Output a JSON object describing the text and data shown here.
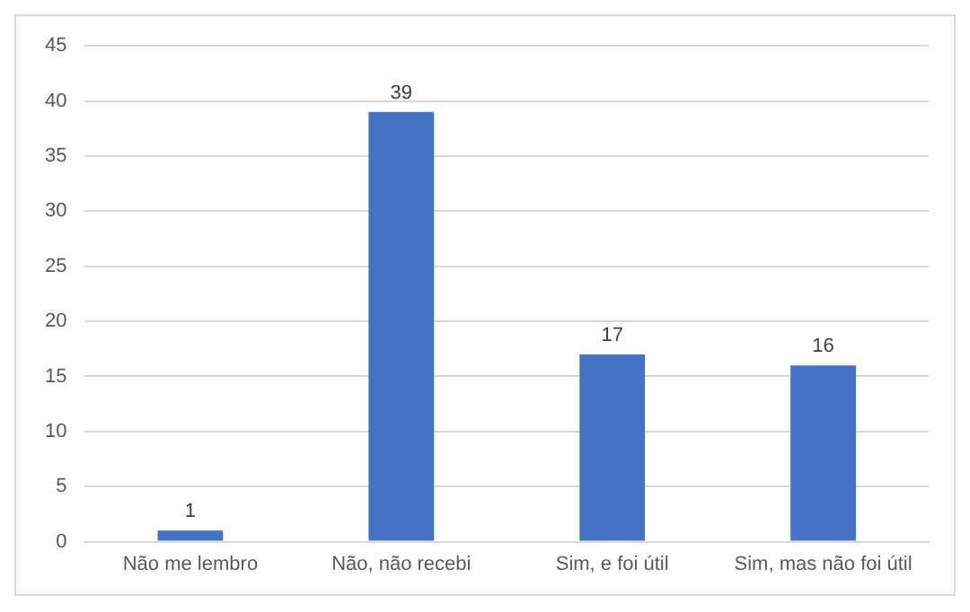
{
  "chart_data": {
    "type": "bar",
    "categories": [
      "Não me lembro",
      "Não, não recebi",
      "Sim, e foi útil",
      "Sim, mas não foi útil"
    ],
    "values": [
      1,
      39,
      17,
      16
    ],
    "color": "#4472c4",
    "ylim": [
      0,
      45
    ],
    "yticks": [
      0,
      5,
      10,
      15,
      20,
      25,
      30,
      35,
      40,
      45
    ],
    "grid": "y",
    "data_labels": true
  }
}
